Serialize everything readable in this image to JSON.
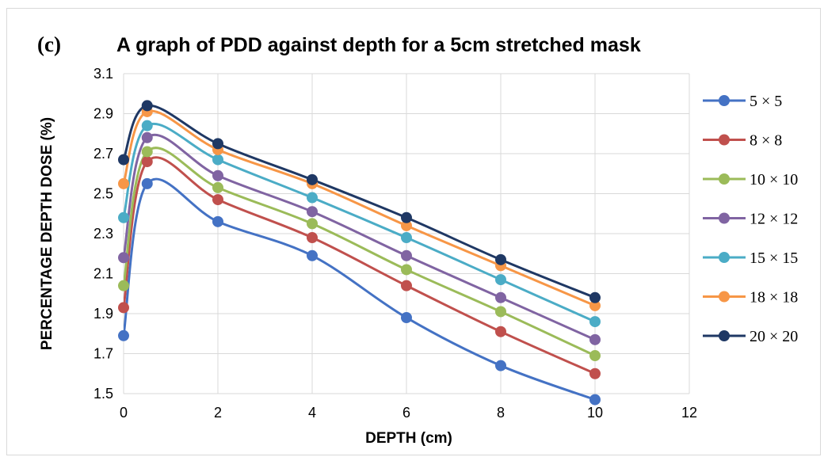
{
  "chart_data": {
    "type": "line",
    "panel_label": "(c)",
    "title": "A graph of PDD against depth for a 5cm stretched mask",
    "xlabel": "DEPTH (cm)",
    "ylabel": "PERCENTAGE DEPTH DOSE (%)",
    "xlim": [
      0,
      12
    ],
    "ylim": [
      1.5,
      3.1
    ],
    "x_ticks": [
      0,
      2,
      4,
      6,
      8,
      10,
      12
    ],
    "y_ticks": [
      1.5,
      1.7,
      1.9,
      2.1,
      2.3,
      2.5,
      2.7,
      2.9,
      3.1
    ],
    "x_tick_labels": [
      "0",
      "2",
      "4",
      "6",
      "8",
      "10",
      "12"
    ],
    "y_tick_labels": [
      "1.5",
      "1.7",
      "1.9",
      "2.1",
      "2.3",
      "2.5",
      "2.7",
      "2.9",
      "3.1"
    ],
    "grid": "horizontal and vertical",
    "legend_position": "right",
    "smooth": true,
    "x": [
      0,
      0.5,
      2,
      4,
      6,
      8,
      10
    ],
    "series": [
      {
        "name": "5 × 5",
        "color": "#4472c4",
        "values": [
          1.79,
          2.55,
          2.36,
          2.19,
          1.88,
          1.64,
          1.47
        ]
      },
      {
        "name": "8 × 8",
        "color": "#c0504d",
        "values": [
          1.93,
          2.66,
          2.47,
          2.28,
          2.04,
          1.81,
          1.6
        ]
      },
      {
        "name": "10 × 10",
        "color": "#9bbb59",
        "values": [
          2.04,
          2.71,
          2.53,
          2.35,
          2.12,
          1.91,
          1.69
        ]
      },
      {
        "name": "12 × 12",
        "color": "#8064a2",
        "values": [
          2.18,
          2.78,
          2.59,
          2.41,
          2.19,
          1.98,
          1.77
        ]
      },
      {
        "name": "15 × 15",
        "color": "#4bacc6",
        "values": [
          2.38,
          2.84,
          2.67,
          2.48,
          2.28,
          2.07,
          1.86
        ]
      },
      {
        "name": "18 × 18",
        "color": "#f79646",
        "values": [
          2.55,
          2.91,
          2.72,
          2.55,
          2.34,
          2.14,
          1.94
        ]
      },
      {
        "name": "20 × 20",
        "color": "#1f3864",
        "values": [
          2.67,
          2.94,
          2.75,
          2.57,
          2.38,
          2.17,
          1.98
        ]
      }
    ]
  }
}
